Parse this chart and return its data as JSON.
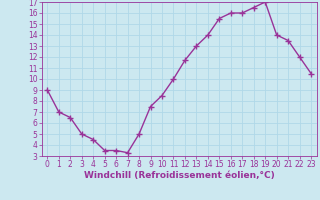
{
  "x": [
    0,
    1,
    2,
    3,
    4,
    5,
    6,
    7,
    8,
    9,
    10,
    11,
    12,
    13,
    14,
    15,
    16,
    17,
    18,
    19,
    20,
    21,
    22,
    23
  ],
  "y": [
    9.0,
    7.0,
    6.5,
    5.0,
    4.5,
    3.5,
    3.5,
    3.3,
    5.0,
    7.5,
    8.5,
    10.0,
    11.7,
    13.0,
    14.0,
    15.5,
    16.0,
    16.0,
    16.5,
    17.0,
    14.0,
    13.5,
    12.0,
    10.5
  ],
  "line_color": "#993399",
  "marker": "+",
  "marker_size": 4,
  "marker_lw": 1.0,
  "bg_color": "#cce8f0",
  "grid_color": "#b0d8e8",
  "xlabel": "Windchill (Refroidissement éolien,°C)",
  "xlabel_color": "#993399",
  "tick_color": "#993399",
  "label_color": "#993399",
  "xlim": [
    -0.5,
    23.5
  ],
  "ylim": [
    3,
    17
  ],
  "yticks": [
    3,
    4,
    5,
    6,
    7,
    8,
    9,
    10,
    11,
    12,
    13,
    14,
    15,
    16,
    17
  ],
  "xticks": [
    0,
    1,
    2,
    3,
    4,
    5,
    6,
    7,
    8,
    9,
    10,
    11,
    12,
    13,
    14,
    15,
    16,
    17,
    18,
    19,
    20,
    21,
    22,
    23
  ],
  "line_width": 1.0,
  "tick_fontsize": 5.5,
  "xlabel_fontsize": 6.5
}
